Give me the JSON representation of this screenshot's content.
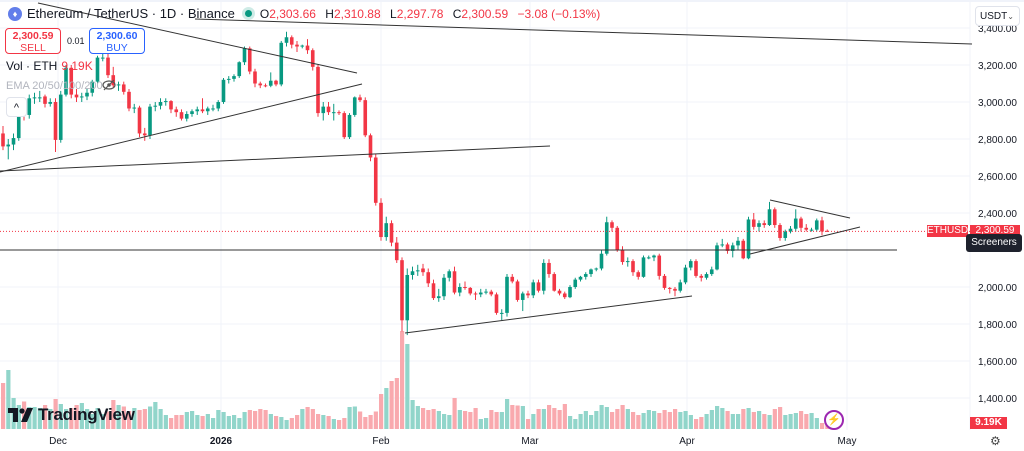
{
  "header": {
    "symbol_title": "Ethereum / TetherUS · 1D · Binance",
    "icon": "ethereum-logo-icon",
    "open_label": "O",
    "open": "2,303.66",
    "high_label": "H",
    "high": "2,310.88",
    "low_label": "L",
    "low": "2,297.78",
    "close_label": "C",
    "close": "2,300.59",
    "change": "−3.08 (−0.13%)"
  },
  "trade": {
    "sell_price": "2,300.59",
    "sell_label": "SELL",
    "spread": "0.01",
    "buy_price": "2,300.60",
    "buy_label": "BUY"
  },
  "indicators": {
    "vol_label": "Vol · ETH",
    "vol_value": "9.19K",
    "ema_label": "EMA 20/50/100/200"
  },
  "currency_select": "USDT",
  "price_badge": {
    "symbol": "ETHUSDT",
    "price": "2,300.59"
  },
  "tooltip": "Screeners",
  "volume_badge": "9.19K",
  "brand": "TradingView",
  "colors": {
    "up": "#089981",
    "down": "#f23645",
    "up_volume": "#91d5ca",
    "down_volume": "#f9a9ae",
    "badge": "#f23645"
  },
  "chart_data": {
    "type": "candlestick",
    "title": "Ethereum / TetherUS · 1D · Binance",
    "ylim": [
      1300,
      3450
    ],
    "y_ticks": [
      "3,400.00",
      "3,200.00",
      "3,000.00",
      "2,800.00",
      "2,600.00",
      "2,400.00",
      "2,000.00",
      "1,800.00",
      "1,600.00",
      "1,400.00"
    ],
    "y_tick_values": [
      3400,
      3200,
      3000,
      2800,
      2600,
      2400,
      2000,
      1800,
      1600,
      1400
    ],
    "x_ticks": [
      "Dec",
      "2026",
      "Feb",
      "Mar",
      "Apr",
      "May"
    ],
    "grid": true,
    "current_price": 2300.59,
    "candle_fields": [
      "open",
      "high",
      "low",
      "close",
      "volume_K"
    ],
    "candles": [
      [
        2830,
        2870,
        2740,
        2760,
        92
      ],
      [
        2760,
        2800,
        2690,
        2770,
        118
      ],
      [
        2770,
        2830,
        2740,
        2805,
        62
      ],
      [
        2805,
        2960,
        2790,
        2940,
        48
      ],
      [
        2940,
        2975,
        2900,
        2930,
        55
      ],
      [
        2930,
        3040,
        2910,
        3020,
        44
      ],
      [
        3020,
        3050,
        2990,
        3025,
        44
      ],
      [
        3025,
        3060,
        3000,
        3025,
        42
      ],
      [
        3030,
        3040,
        2970,
        2990,
        48
      ],
      [
        2990,
        3020,
        2975,
        3000,
        40
      ],
      [
        3000,
        3020,
        2730,
        2795,
        60
      ],
      [
        2795,
        3060,
        2780,
        3040,
        50
      ],
      [
        3040,
        3200,
        3030,
        3185,
        40
      ],
      [
        3185,
        3200,
        3020,
        3040,
        42
      ],
      [
        3040,
        3070,
        3000,
        3025,
        48
      ],
      [
        3025,
        3050,
        3000,
        3030,
        52
      ],
      [
        3030,
        3070,
        3010,
        3050,
        40
      ],
      [
        3050,
        3120,
        3030,
        3110,
        30
      ],
      [
        3110,
        3250,
        3100,
        3240,
        42
      ],
      [
        3240,
        3300,
        3220,
        3240,
        30
      ],
      [
        3240,
        3260,
        3130,
        3145,
        35
      ],
      [
        3145,
        3190,
        3080,
        3090,
        58
      ],
      [
        3090,
        3110,
        3060,
        3095,
        48
      ],
      [
        3095,
        3110,
        3040,
        3055,
        45
      ],
      [
        3055,
        3070,
        2950,
        2965,
        36
      ],
      [
        2965,
        2990,
        2940,
        2970,
        42
      ],
      [
        2970,
        2980,
        2810,
        2830,
        38
      ],
      [
        2830,
        2860,
        2790,
        2820,
        40
      ],
      [
        2820,
        2990,
        2800,
        2975,
        45
      ],
      [
        2975,
        3000,
        2950,
        2980,
        54
      ],
      [
        2980,
        3020,
        2960,
        3000,
        40
      ],
      [
        3000,
        3020,
        2980,
        3005,
        28
      ],
      [
        3005,
        3010,
        2940,
        2960,
        22
      ],
      [
        2960,
        2975,
        2920,
        2945,
        28
      ],
      [
        2945,
        2960,
        2900,
        2910,
        28
      ],
      [
        2910,
        2950,
        2895,
        2935,
        34
      ],
      [
        2935,
        2960,
        2920,
        2950,
        36
      ],
      [
        2950,
        2975,
        2930,
        2960,
        28
      ],
      [
        2960,
        3020,
        2940,
        2950,
        26
      ],
      [
        2950,
        2975,
        2930,
        2965,
        30
      ],
      [
        2965,
        2985,
        2950,
        2965,
        22
      ],
      [
        2965,
        3010,
        2950,
        3000,
        38
      ],
      [
        3000,
        3130,
        2990,
        3120,
        34
      ],
      [
        3120,
        3140,
        3100,
        3125,
        26
      ],
      [
        3125,
        3150,
        3110,
        3140,
        28
      ],
      [
        3140,
        3220,
        3130,
        3215,
        22
      ],
      [
        3215,
        3300,
        3200,
        3290,
        34
      ],
      [
        3290,
        3300,
        3150,
        3165,
        38
      ],
      [
        3165,
        3180,
        3080,
        3100,
        36
      ],
      [
        3100,
        3110,
        3075,
        3090,
        40
      ],
      [
        3090,
        3100,
        3080,
        3088,
        38
      ],
      [
        3088,
        3160,
        3080,
        3115,
        30
      ],
      [
        3115,
        3120,
        3085,
        3095,
        26
      ],
      [
        3095,
        3330,
        3085,
        3320,
        24
      ],
      [
        3320,
        3380,
        3300,
        3350,
        18
      ],
      [
        3350,
        3360,
        3290,
        3310,
        22
      ],
      [
        3310,
        3330,
        3270,
        3300,
        28
      ],
      [
        3300,
        3310,
        3290,
        3305,
        40
      ],
      [
        3305,
        3340,
        3260,
        3280,
        44
      ],
      [
        3280,
        3290,
        3170,
        3190,
        40
      ],
      [
        3190,
        3200,
        2920,
        2940,
        30
      ],
      [
        2940,
        3000,
        2900,
        2975,
        28
      ],
      [
        2975,
        3000,
        2930,
        2945,
        26
      ],
      [
        2945,
        2990,
        2900,
        2945,
        20
      ],
      [
        2945,
        2955,
        2930,
        2940,
        18
      ],
      [
        2940,
        2950,
        2800,
        2810,
        22
      ],
      [
        2810,
        2940,
        2800,
        2930,
        44
      ],
      [
        2930,
        3030,
        2920,
        3025,
        45
      ],
      [
        3025,
        3040,
        3000,
        3010,
        35
      ],
      [
        3010,
        3025,
        2810,
        2820,
        24
      ],
      [
        2820,
        2830,
        2680,
        2700,
        28
      ],
      [
        2700,
        2720,
        2440,
        2455,
        35
      ],
      [
        2455,
        2480,
        2250,
        2270,
        70
      ],
      [
        2270,
        2380,
        2250,
        2345,
        82
      ],
      [
        2345,
        2360,
        2220,
        2240,
        96
      ],
      [
        2240,
        2270,
        2130,
        2145,
        102
      ],
      [
        2145,
        2160,
        1760,
        1820,
        196
      ],
      [
        1820,
        2100,
        1740,
        2065,
        170
      ],
      [
        2065,
        2110,
        2040,
        2085,
        58
      ],
      [
        2085,
        2120,
        2060,
        2090,
        46
      ],
      [
        2100,
        2125,
        2060,
        2080,
        42
      ],
      [
        2080,
        2100,
        2000,
        2020,
        38
      ],
      [
        2020,
        2040,
        1930,
        1940,
        40
      ],
      [
        1940,
        1990,
        1920,
        1950,
        36
      ],
      [
        1950,
        2070,
        1930,
        2050,
        30
      ],
      [
        2050,
        2095,
        2030,
        2085,
        28
      ],
      [
        2085,
        2110,
        1960,
        1970,
        62
      ],
      [
        1970,
        2020,
        1950,
        2000,
        38
      ],
      [
        2000,
        2030,
        1985,
        1995,
        36
      ],
      [
        1995,
        2000,
        1955,
        1965,
        34
      ],
      [
        1965,
        1975,
        1930,
        1960,
        42
      ],
      [
        1960,
        1990,
        1945,
        1970,
        20
      ],
      [
        1970,
        1990,
        1960,
        1975,
        22
      ],
      [
        1975,
        1985,
        1950,
        1960,
        38
      ],
      [
        1960,
        1970,
        1850,
        1860,
        34
      ],
      [
        1860,
        1880,
        1820,
        1860,
        34
      ],
      [
        1860,
        2070,
        1840,
        2055,
        60
      ],
      [
        2055,
        2070,
        2020,
        2030,
        48
      ],
      [
        2030,
        2040,
        1920,
        1930,
        47
      ],
      [
        1930,
        1975,
        1870,
        1965,
        46
      ],
      [
        1965,
        1980,
        1940,
        1955,
        20
      ],
      [
        1955,
        2040,
        1940,
        2025,
        30
      ],
      [
        2025,
        2040,
        1970,
        1980,
        40
      ],
      [
        1980,
        2150,
        1960,
        2130,
        40
      ],
      [
        2130,
        2150,
        2050,
        2070,
        48
      ],
      [
        2070,
        2080,
        1975,
        1980,
        42
      ],
      [
        1980,
        1990,
        1955,
        1965,
        38
      ],
      [
        1965,
        1975,
        1935,
        1945,
        50
      ],
      [
        1945,
        2010,
        1940,
        2000,
        26
      ],
      [
        2000,
        2050,
        1990,
        2040,
        20
      ],
      [
        2040,
        2060,
        2030,
        2055,
        30
      ],
      [
        2055,
        2080,
        2040,
        2070,
        36
      ],
      [
        2070,
        2100,
        2055,
        2095,
        28
      ],
      [
        2095,
        2105,
        2085,
        2100,
        36
      ],
      [
        2100,
        2200,
        2090,
        2180,
        48
      ],
      [
        2180,
        2380,
        2170,
        2350,
        44
      ],
      [
        2350,
        2360,
        2300,
        2320,
        34
      ],
      [
        2320,
        2330,
        2190,
        2200,
        40
      ],
      [
        2200,
        2220,
        2120,
        2135,
        48
      ],
      [
        2135,
        2160,
        2110,
        2140,
        40
      ],
      [
        2140,
        2150,
        2060,
        2080,
        34
      ],
      [
        2080,
        2090,
        2040,
        2055,
        28
      ],
      [
        2055,
        2170,
        2050,
        2160,
        32
      ],
      [
        2160,
        2170,
        2150,
        2160,
        38
      ],
      [
        2160,
        2175,
        2140,
        2170,
        36
      ],
      [
        2170,
        2180,
        2040,
        2060,
        32
      ],
      [
        2060,
        2070,
        1985,
        1995,
        38
      ],
      [
        1995,
        2000,
        1965,
        1990,
        34
      ],
      [
        1990,
        2000,
        1950,
        1980,
        40
      ],
      [
        1980,
        2040,
        1970,
        2025,
        34
      ],
      [
        2025,
        2120,
        2015,
        2105,
        36
      ],
      [
        2105,
        2150,
        2090,
        2140,
        28
      ],
      [
        2140,
        2150,
        2050,
        2060,
        20
      ],
      [
        2060,
        2070,
        2030,
        2050,
        24
      ],
      [
        2050,
        2080,
        2040,
        2070,
        30
      ],
      [
        2070,
        2110,
        2060,
        2095,
        38
      ],
      [
        2095,
        2240,
        2090,
        2225,
        46
      ],
      [
        2225,
        2260,
        2215,
        2230,
        42
      ],
      [
        2230,
        2240,
        2180,
        2195,
        36
      ],
      [
        2195,
        2240,
        2160,
        2225,
        30
      ],
      [
        2225,
        2270,
        2200,
        2250,
        30
      ],
      [
        2250,
        2260,
        2150,
        2155,
        40
      ],
      [
        2155,
        2380,
        2150,
        2365,
        42
      ],
      [
        2365,
        2400,
        2310,
        2325,
        34
      ],
      [
        2325,
        2360,
        2300,
        2345,
        36
      ],
      [
        2345,
        2360,
        2320,
        2335,
        30
      ],
      [
        2335,
        2460,
        2330,
        2420,
        28
      ],
      [
        2420,
        2430,
        2320,
        2335,
        40
      ],
      [
        2335,
        2345,
        2250,
        2265,
        44
      ],
      [
        2265,
        2310,
        2250,
        2300,
        28
      ],
      [
        2300,
        2330,
        2290,
        2315,
        30
      ],
      [
        2315,
        2420,
        2300,
        2370,
        32
      ],
      [
        2370,
        2380,
        2300,
        2320,
        36
      ],
      [
        2320,
        2340,
        2300,
        2310,
        30
      ],
      [
        2310,
        2320,
        2300,
        2310,
        32
      ],
      [
        2310,
        2370,
        2300,
        2360,
        22
      ],
      [
        2360,
        2380,
        2280,
        2300,
        12
      ],
      [
        2303.66,
        2310.88,
        2297.78,
        2300.59,
        9.19
      ]
    ]
  }
}
